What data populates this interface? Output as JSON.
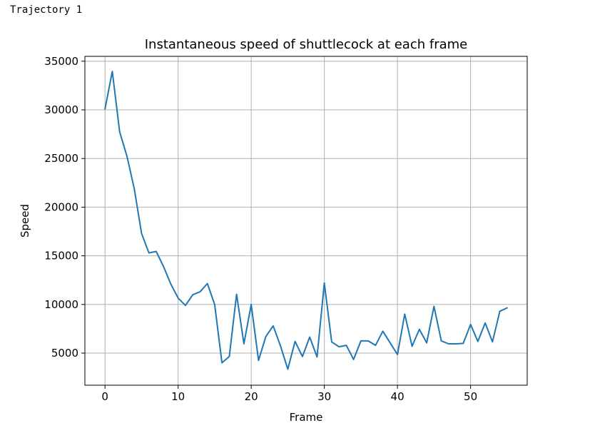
{
  "cell_output": {
    "label": "Trajectory 1"
  },
  "chart_data": {
    "type": "line",
    "title": "Instantaneous speed of shuttlecock at each frame",
    "xlabel": "Frame",
    "ylabel": "Speed",
    "xlim": [
      -2.75,
      57.75
    ],
    "ylim": [
      1700,
      35500
    ],
    "xticks": [
      0,
      10,
      20,
      30,
      40,
      50
    ],
    "yticks": [
      5000,
      10000,
      15000,
      20000,
      25000,
      30000,
      35000
    ],
    "grid": true,
    "line_color": "#1f77b4",
    "series": [
      {
        "x": [
          0,
          1,
          2,
          3,
          4,
          5,
          6,
          7,
          8,
          9,
          10,
          11,
          12,
          13,
          14,
          15,
          16,
          17,
          18,
          19,
          20,
          21,
          22,
          23,
          24,
          25,
          26,
          27,
          28,
          29,
          30,
          31,
          32,
          33,
          34,
          35,
          36,
          37,
          38,
          39,
          40,
          41,
          42,
          43,
          44,
          45,
          46,
          47,
          48,
          49,
          50,
          51,
          52,
          53,
          54,
          55
        ],
        "values": [
          30100,
          33950,
          27750,
          25250,
          21900,
          17300,
          15300,
          15450,
          13900,
          12100,
          10650,
          9900,
          11000,
          11300,
          12150,
          10000,
          4000,
          4650,
          11050,
          5950,
          10000,
          4250,
          6700,
          7800,
          5750,
          3350,
          6200,
          4650,
          6650,
          4600,
          12200,
          6150,
          5650,
          5800,
          4350,
          6250,
          6250,
          5800,
          7250,
          6050,
          4850,
          9000,
          5700,
          7450,
          6050,
          9800,
          6250,
          5950,
          5950,
          6000,
          7950,
          6200,
          8100,
          6150,
          9300,
          9650
        ]
      }
    ]
  }
}
